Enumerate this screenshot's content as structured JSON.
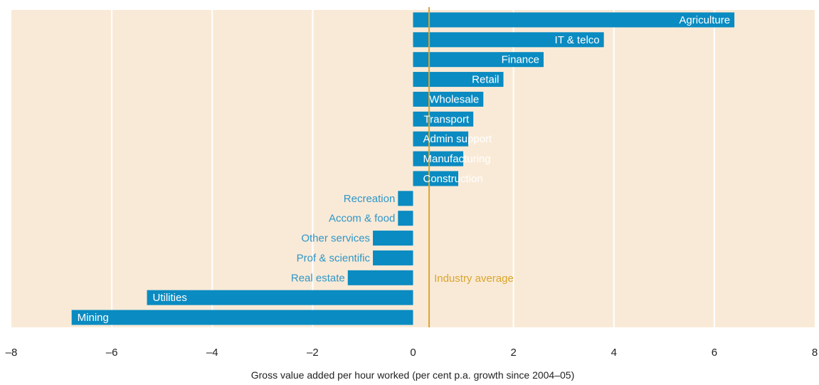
{
  "chart_data": {
    "type": "bar",
    "orientation": "horizontal",
    "categories": [
      "Agriculture",
      "IT & telco",
      "Finance",
      "Retail",
      "Wholesale",
      "Transport",
      "Admin support",
      "Manufacturing",
      "Construction",
      "Recreation",
      "Accom & food",
      "Other services",
      "Prof & scientific",
      "Real estate",
      "Utilities",
      "Mining"
    ],
    "values": [
      6.4,
      3.8,
      2.6,
      1.8,
      1.4,
      1.2,
      1.1,
      1.0,
      0.9,
      -0.3,
      -0.3,
      -0.8,
      -0.8,
      -1.3,
      -5.3,
      -6.8
    ],
    "xlabel": "Gross value added per hour worked (per cent p.a. growth since 2004–05)",
    "xlim": [
      -8,
      8
    ],
    "xticks": [
      "–8",
      "–6",
      "–4",
      "–2",
      "0",
      "2",
      "4",
      "6",
      "8"
    ],
    "reference_line": {
      "label": "Industry average",
      "value": 0.32
    },
    "grid": true,
    "colors": {
      "bar": "#0a8bc1",
      "plot_bg": "#f9ead7",
      "grid": "#ffffff",
      "average": "#d9a52c",
      "label_inside": "#ffffff",
      "label_outside": "#2f96c8"
    }
  }
}
